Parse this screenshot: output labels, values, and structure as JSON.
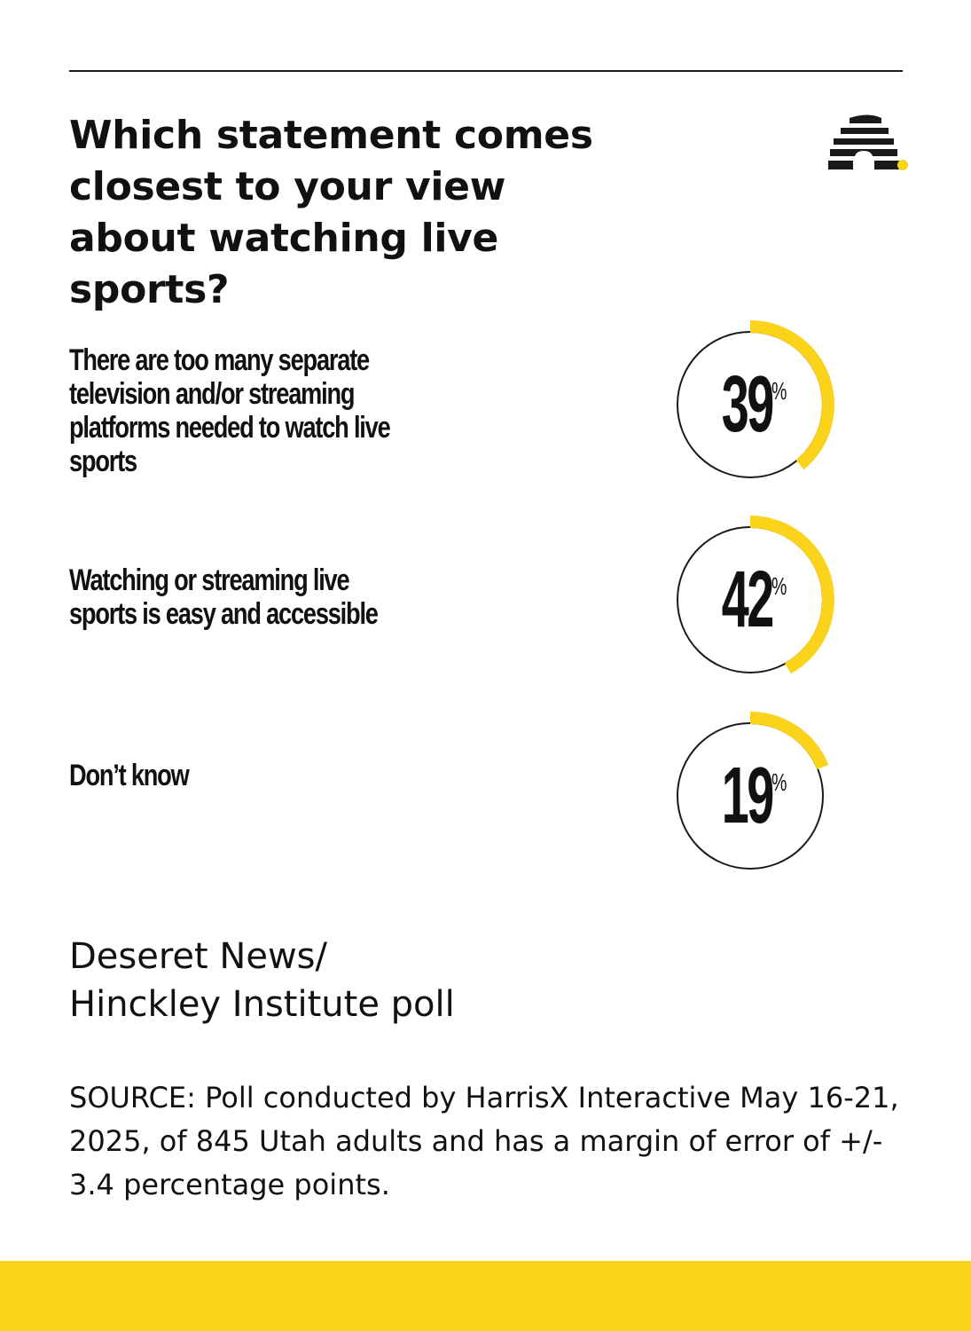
{
  "title": "Which statement comes closest to your view about watching live sports?",
  "colors": {
    "accent": "#fcd31b",
    "ink": "#111111",
    "track": "#1a1a1a"
  },
  "logo": {
    "icon": "beehive-icon"
  },
  "chart_data": {
    "type": "donut",
    "title": "Which statement comes closest to your view about watching live sports?",
    "unit": "%",
    "categories": [
      "There are too many separate television and/or streaming platforms needed to watch live sports",
      "Watching or streaming live sports is easy and accessible",
      "Don’t know"
    ],
    "values": [
      39,
      42,
      19
    ],
    "items": [
      {
        "label": "There are too many separate television and/or streaming platforms needed to watch live sports",
        "value": 39,
        "display": "39",
        "unit": "%"
      },
      {
        "label": "Watching or streaming live sports is easy and accessible",
        "value": 42,
        "display": "42",
        "unit": "%"
      },
      {
        "label": "Don’t know",
        "value": 19,
        "display": "19",
        "unit": "%"
      }
    ]
  },
  "poll_name": "Deseret News/\nHinckley Institute poll",
  "source": "SOURCE: Poll conducted by HarrisX Interactive May 16-21, 2025, of 845 Utah adults and has a margin of error of +/- 3.4 percentage points."
}
